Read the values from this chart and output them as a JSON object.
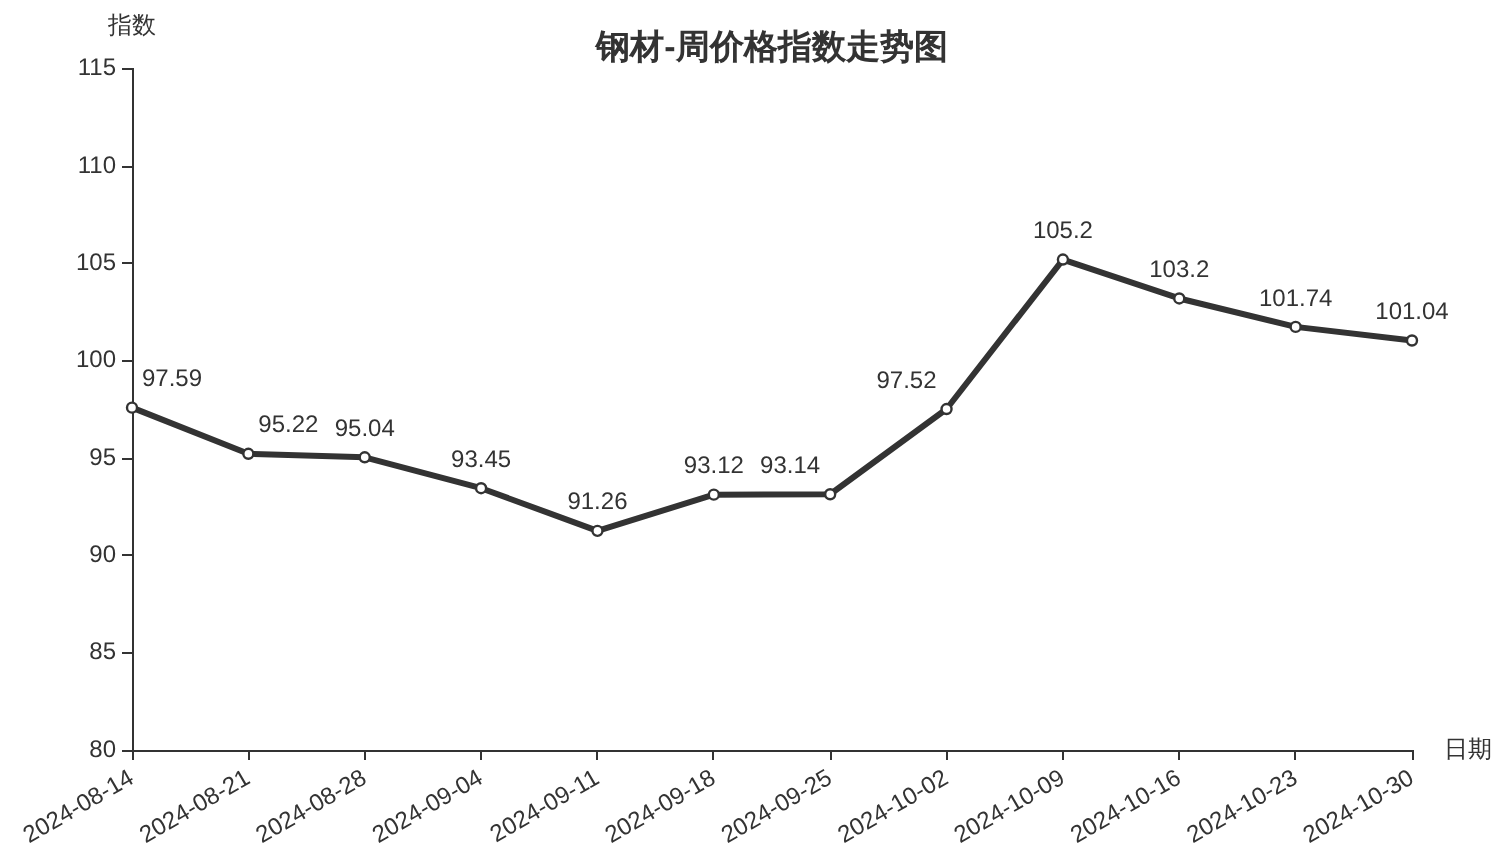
{
  "chart_data": {
    "type": "line",
    "title": "钢材-周价格指数走势图",
    "xlabel": "日期",
    "ylabel": "指数",
    "categories": [
      "2024-08-14",
      "2024-08-21",
      "2024-08-28",
      "2024-09-04",
      "2024-09-11",
      "2024-09-18",
      "2024-09-25",
      "2024-10-02",
      "2024-10-09",
      "2024-10-16",
      "2024-10-23",
      "2024-10-30"
    ],
    "series": [
      {
        "color": "#333333",
        "values": [
          97.59,
          95.22,
          95.04,
          93.45,
          91.26,
          93.12,
          93.14,
          97.52,
          105.2,
          103.2,
          101.74,
          101.04
        ]
      }
    ],
    "ylim": [
      80,
      115
    ],
    "yticks": [
      80,
      85,
      90,
      95,
      100,
      105,
      110,
      115
    ],
    "grid": false,
    "legend": false,
    "marker": "circle",
    "line_style": "solid",
    "data_labels": true
  }
}
